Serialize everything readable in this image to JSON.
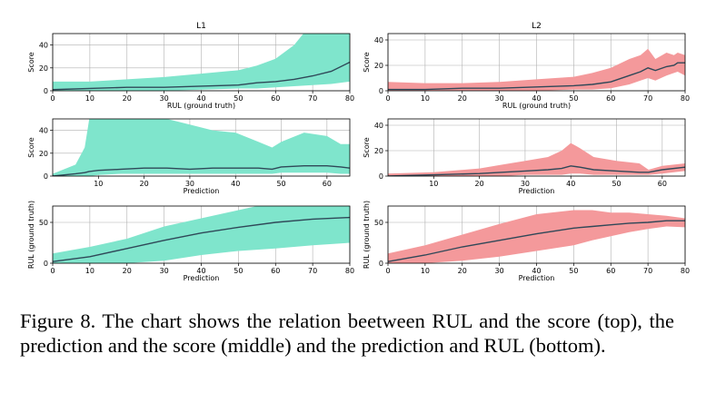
{
  "caption": "Figure 8.  The chart shows the relation beetween RUL and the score (top), the prediction and the score (middle) and the prediction and RUL (bottom).",
  "colors": {
    "L1": "#7fe5cc",
    "L2": "#f4999b",
    "line": "#2f4858",
    "grid": "#b0b0b0"
  },
  "chart_data": [
    {
      "id": "l1-top",
      "type": "area",
      "title": "L1",
      "xlabel": "RUL (ground truth)",
      "ylabel": "Score",
      "color": "L1",
      "xlim": [
        0,
        80
      ],
      "ylim": [
        0,
        50
      ],
      "xticks": [
        0,
        10,
        20,
        30,
        40,
        50,
        60,
        70,
        80
      ],
      "yticks": [
        0,
        20,
        40
      ],
      "x": [
        0,
        10,
        20,
        30,
        40,
        50,
        55,
        60,
        65,
        70,
        75,
        80
      ],
      "lower": [
        0,
        0,
        0,
        0,
        1,
        2,
        2,
        3,
        4,
        5,
        6,
        8
      ],
      "upper": [
        8,
        8,
        10,
        12,
        15,
        18,
        22,
        28,
        40,
        60,
        60,
        60
      ],
      "mean": [
        1,
        2,
        3,
        3,
        4,
        5,
        7,
        8,
        10,
        13,
        17,
        25
      ]
    },
    {
      "id": "l2-top",
      "type": "area",
      "title": "L2",
      "xlabel": "RUL (ground truth)",
      "ylabel": "Score",
      "color": "L2",
      "xlim": [
        0,
        80
      ],
      "ylim": [
        0,
        45
      ],
      "xticks": [
        0,
        10,
        20,
        30,
        40,
        50,
        60,
        70,
        80
      ],
      "yticks": [
        0,
        20,
        40
      ],
      "x": [
        0,
        10,
        20,
        30,
        40,
        50,
        55,
        60,
        65,
        68,
        70,
        72,
        75,
        77,
        78,
        80
      ],
      "lower": [
        0,
        0,
        0,
        0,
        0,
        1,
        1,
        2,
        5,
        8,
        10,
        8,
        12,
        14,
        15,
        12
      ],
      "upper": [
        7,
        6,
        6,
        7,
        9,
        11,
        14,
        18,
        25,
        28,
        33,
        25,
        30,
        28,
        30,
        28
      ],
      "mean": [
        1,
        1,
        2,
        2,
        3,
        4,
        5,
        7,
        12,
        15,
        18,
        16,
        19,
        20,
        22,
        22
      ]
    },
    {
      "id": "l1-mid",
      "type": "area",
      "xlabel": "Prediction",
      "ylabel": "Score",
      "color": "L1",
      "xlim": [
        0,
        65
      ],
      "ylim": [
        0,
        50
      ],
      "xticks": [
        10,
        20,
        30,
        40,
        50,
        60
      ],
      "yticks": [
        0,
        20,
        40
      ],
      "x": [
        0,
        5,
        7,
        8,
        10,
        15,
        20,
        25,
        30,
        35,
        40,
        45,
        48,
        50,
        55,
        60,
        63,
        65
      ],
      "lower": [
        0,
        0,
        0,
        0,
        1,
        2,
        2,
        2,
        2,
        2,
        2,
        2,
        2,
        3,
        3,
        3,
        2,
        2
      ],
      "upper": [
        2,
        10,
        25,
        50,
        60,
        60,
        60,
        50,
        45,
        40,
        38,
        30,
        25,
        30,
        38,
        35,
        28,
        28
      ],
      "mean": [
        0,
        2,
        3,
        4,
        5,
        6,
        7,
        7,
        6,
        7,
        7,
        7,
        6,
        8,
        9,
        9,
        8,
        7
      ]
    },
    {
      "id": "l2-mid",
      "type": "area",
      "xlabel": "Prediction",
      "ylabel": "Score",
      "color": "L2",
      "xlim": [
        0,
        65
      ],
      "ylim": [
        0,
        45
      ],
      "xticks": [
        10,
        20,
        30,
        40,
        50,
        60
      ],
      "yticks": [
        0,
        20,
        40
      ],
      "x": [
        0,
        10,
        20,
        25,
        30,
        35,
        38,
        40,
        42,
        45,
        50,
        55,
        57,
        60,
        65
      ],
      "lower": [
        0,
        0,
        0,
        0,
        1,
        1,
        1,
        2,
        2,
        1,
        1,
        1,
        1,
        2,
        4
      ],
      "upper": [
        2,
        3,
        6,
        9,
        12,
        15,
        20,
        26,
        22,
        15,
        12,
        10,
        5,
        8,
        10
      ],
      "mean": [
        0,
        1,
        2,
        3,
        4,
        5,
        6,
        8,
        7,
        5,
        4,
        3,
        3,
        5,
        7
      ]
    },
    {
      "id": "l1-bot",
      "type": "area",
      "xlabel": "Prediction",
      "ylabel": "RUL (ground truth)",
      "color": "L1",
      "xlim": [
        0,
        80
      ],
      "ylim": [
        0,
        70
      ],
      "xticks": [
        0,
        10,
        20,
        30,
        40,
        50,
        60,
        70,
        80
      ],
      "yticks": [
        0,
        50
      ],
      "x": [
        0,
        10,
        20,
        30,
        40,
        50,
        60,
        70,
        80
      ],
      "lower": [
        0,
        0,
        0,
        3,
        10,
        15,
        18,
        22,
        25
      ],
      "upper": [
        12,
        20,
        30,
        45,
        55,
        65,
        75,
        85,
        85
      ],
      "mean": [
        2,
        8,
        18,
        28,
        37,
        44,
        50,
        54,
        56
      ]
    },
    {
      "id": "l2-bot",
      "type": "area",
      "xlabel": "Prediction",
      "ylabel": "RUL (ground truth)",
      "color": "L2",
      "xlim": [
        0,
        80
      ],
      "ylim": [
        0,
        70
      ],
      "xticks": [
        0,
        10,
        20,
        30,
        40,
        50,
        60,
        70,
        80
      ],
      "yticks": [
        0,
        50
      ],
      "x": [
        0,
        10,
        20,
        30,
        40,
        50,
        55,
        60,
        65,
        70,
        75,
        80
      ],
      "lower": [
        0,
        0,
        3,
        8,
        15,
        22,
        28,
        33,
        38,
        42,
        45,
        44
      ],
      "upper": [
        12,
        22,
        35,
        48,
        60,
        65,
        65,
        62,
        62,
        60,
        58,
        55
      ],
      "mean": [
        2,
        10,
        20,
        28,
        36,
        43,
        45,
        47,
        49,
        50,
        52,
        52
      ]
    }
  ]
}
